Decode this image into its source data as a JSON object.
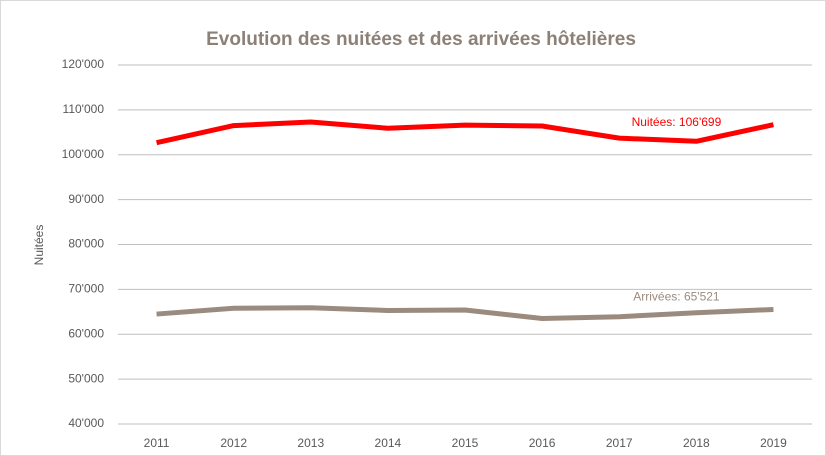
{
  "chart_data": {
    "type": "line",
    "title": "Evolution des nuitées et des arrivées hôtelières",
    "y_label": "Nuitées",
    "categories": [
      "2011",
      "2012",
      "2013",
      "2014",
      "2015",
      "2016",
      "2017",
      "2018",
      "2019"
    ],
    "series": [
      {
        "color": "#ff0000",
        "values": [
          102700,
          106500,
          107300,
          105900,
          106600,
          106400,
          103700,
          103000,
          106699
        ],
        "value_labels": [
          null,
          null,
          null,
          null,
          null,
          null,
          null,
          null,
          "Nuitées: 106'699"
        ]
      },
      {
        "color": "#9b8b7f",
        "values": [
          64500,
          65800,
          65900,
          65300,
          65400,
          63500,
          63900,
          64800,
          65521
        ],
        "value_labels": [
          null,
          null,
          null,
          null,
          null,
          null,
          null,
          null,
          "Arrivées: 65'521"
        ]
      }
    ],
    "ylim": [
      40000,
      120000
    ],
    "yticks": [
      {
        "value": 40000,
        "label": "40'000"
      },
      {
        "value": 50000,
        "label": "50'000"
      },
      {
        "value": 60000,
        "label": "60'000"
      },
      {
        "value": 70000,
        "label": "70'000"
      },
      {
        "value": 80000,
        "label": "80'000"
      },
      {
        "value": 90000,
        "label": "90'000"
      },
      {
        "value": 100000,
        "label": "100'000"
      },
      {
        "value": 110000,
        "label": "110'000"
      },
      {
        "value": 120000,
        "label": "120'000"
      }
    ],
    "grid": true
  }
}
